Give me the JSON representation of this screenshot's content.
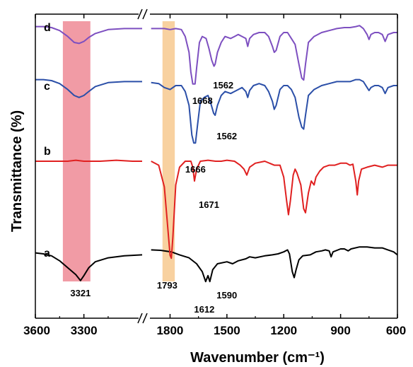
{
  "chart_data": {
    "type": "line",
    "xlabel": "Wavenumber (cm⁻¹)",
    "ylabel": "Transmittance (%)",
    "x_ticks": [
      "3600",
      "3300",
      "1800",
      "1500",
      "1200",
      "900",
      "600"
    ],
    "x_axis_break": true,
    "x_reversed": true,
    "highlight_bands": [
      {
        "from": 3430,
        "to": 3260,
        "color": "#ee8a95"
      },
      {
        "from": 1840,
        "to": 1775,
        "color": "#f7c98f"
      }
    ],
    "series": [
      {
        "name": "a",
        "color": "#000000",
        "points": [
          [
            3600,
            0.055
          ],
          [
            3550,
            0.05
          ],
          [
            3500,
            0.04
          ],
          [
            3450,
            0.015
          ],
          [
            3400,
            -0.02
          ],
          [
            3350,
            -0.055
          ],
          [
            3321,
            -0.085
          ],
          [
            3300,
            -0.06
          ],
          [
            3270,
            -0.02
          ],
          [
            3230,
            0.01
          ],
          [
            3150,
            0.03
          ],
          [
            3050,
            0.04
          ],
          [
            2940,
            0.045
          ],
          [
            1900,
            0.07
          ],
          [
            1850,
            0.068
          ],
          [
            1793,
            0.06
          ],
          [
            1750,
            0.045
          ],
          [
            1700,
            0.03
          ],
          [
            1660,
            0.0
          ],
          [
            1630,
            -0.04
          ],
          [
            1612,
            -0.09
          ],
          [
            1600,
            -0.06
          ],
          [
            1590,
            -0.09
          ],
          [
            1575,
            -0.03
          ],
          [
            1550,
            0.0
          ],
          [
            1500,
            0.01
          ],
          [
            1470,
            0.0
          ],
          [
            1440,
            0.015
          ],
          [
            1400,
            0.025
          ],
          [
            1380,
            0.035
          ],
          [
            1350,
            0.03
          ],
          [
            1300,
            0.04
          ],
          [
            1260,
            0.045
          ],
          [
            1230,
            0.05
          ],
          [
            1200,
            0.06
          ],
          [
            1180,
            0.07
          ],
          [
            1170,
            0.05
          ],
          [
            1155,
            -0.04
          ],
          [
            1145,
            -0.07
          ],
          [
            1135,
            -0.03
          ],
          [
            1120,
            0.02
          ],
          [
            1100,
            0.04
          ],
          [
            1060,
            0.045
          ],
          [
            1030,
            0.06
          ],
          [
            1000,
            0.065
          ],
          [
            980,
            0.07
          ],
          [
            960,
            0.065
          ],
          [
            950,
            0.035
          ],
          [
            940,
            0.06
          ],
          [
            900,
            0.075
          ],
          [
            880,
            0.075
          ],
          [
            860,
            0.065
          ],
          [
            845,
            0.075
          ],
          [
            800,
            0.085
          ],
          [
            760,
            0.085
          ],
          [
            720,
            0.08
          ],
          [
            680,
            0.08
          ],
          [
            650,
            0.07
          ],
          [
            620,
            0.06
          ],
          [
            600,
            0.045
          ]
        ]
      },
      {
        "name": "b",
        "color": "#e02020",
        "points": [
          [
            3600,
            0.0
          ],
          [
            3500,
            0.0
          ],
          [
            3400,
            0.0
          ],
          [
            3350,
            0.005
          ],
          [
            3300,
            0.0
          ],
          [
            3200,
            0.0
          ],
          [
            3100,
            0.005
          ],
          [
            3000,
            0.0
          ],
          [
            2940,
            0.0
          ],
          [
            1900,
            0.0
          ],
          [
            1860,
            -0.02
          ],
          [
            1830,
            -0.13
          ],
          [
            1810,
            -0.36
          ],
          [
            1800,
            -0.475
          ],
          [
            1793,
            -0.49
          ],
          [
            1785,
            -0.38
          ],
          [
            1770,
            -0.12
          ],
          [
            1750,
            -0.03
          ],
          [
            1720,
            0.0
          ],
          [
            1690,
            0.0
          ],
          [
            1680,
            -0.03
          ],
          [
            1671,
            -0.1
          ],
          [
            1660,
            -0.04
          ],
          [
            1640,
            0.0
          ],
          [
            1600,
            0.005
          ],
          [
            1560,
            0.0
          ],
          [
            1530,
            0.0
          ],
          [
            1500,
            0.005
          ],
          [
            1460,
            0.0
          ],
          [
            1430,
            -0.02
          ],
          [
            1410,
            -0.04
          ],
          [
            1395,
            -0.07
          ],
          [
            1380,
            -0.03
          ],
          [
            1350,
            -0.01
          ],
          [
            1300,
            0.0
          ],
          [
            1250,
            -0.02
          ],
          [
            1220,
            -0.02
          ],
          [
            1200,
            -0.08
          ],
          [
            1185,
            -0.2
          ],
          [
            1175,
            -0.27
          ],
          [
            1165,
            -0.2
          ],
          [
            1150,
            -0.07
          ],
          [
            1140,
            -0.04
          ],
          [
            1130,
            -0.06
          ],
          [
            1110,
            -0.12
          ],
          [
            1095,
            -0.24
          ],
          [
            1085,
            -0.26
          ],
          [
            1070,
            -0.16
          ],
          [
            1055,
            -0.1
          ],
          [
            1040,
            -0.12
          ],
          [
            1030,
            -0.08
          ],
          [
            1010,
            -0.05
          ],
          [
            990,
            -0.03
          ],
          [
            960,
            -0.02
          ],
          [
            930,
            -0.02
          ],
          [
            900,
            -0.01
          ],
          [
            870,
            -0.01
          ],
          [
            850,
            -0.02
          ],
          [
            835,
            -0.015
          ],
          [
            820,
            -0.1
          ],
          [
            812,
            -0.17
          ],
          [
            805,
            -0.1
          ],
          [
            790,
            -0.04
          ],
          [
            760,
            -0.03
          ],
          [
            720,
            -0.02
          ],
          [
            680,
            -0.03
          ],
          [
            650,
            -0.02
          ],
          [
            620,
            -0.02
          ],
          [
            600,
            -0.02
          ]
        ]
      },
      {
        "name": "c",
        "color": "#2b4fa8",
        "points": [
          [
            3600,
            0.03
          ],
          [
            3550,
            0.03
          ],
          [
            3500,
            0.025
          ],
          [
            3450,
            0.01
          ],
          [
            3400,
            -0.02
          ],
          [
            3360,
            -0.05
          ],
          [
            3330,
            -0.06
          ],
          [
            3300,
            -0.05
          ],
          [
            3270,
            -0.03
          ],
          [
            3230,
            -0.005
          ],
          [
            3150,
            0.015
          ],
          [
            3050,
            0.02
          ],
          [
            2940,
            0.02
          ],
          [
            1900,
            0.015
          ],
          [
            1860,
            0.01
          ],
          [
            1830,
            -0.01
          ],
          [
            1800,
            -0.02
          ],
          [
            1770,
            0.0
          ],
          [
            1740,
            0.0
          ],
          [
            1720,
            -0.03
          ],
          [
            1700,
            -0.1
          ],
          [
            1685,
            -0.25
          ],
          [
            1675,
            -0.29
          ],
          [
            1666,
            -0.29
          ],
          [
            1655,
            -0.2
          ],
          [
            1640,
            -0.08
          ],
          [
            1620,
            -0.06
          ],
          [
            1600,
            -0.05
          ],
          [
            1585,
            -0.09
          ],
          [
            1570,
            -0.14
          ],
          [
            1562,
            -0.15
          ],
          [
            1550,
            -0.1
          ],
          [
            1530,
            -0.05
          ],
          [
            1510,
            -0.03
          ],
          [
            1480,
            -0.04
          ],
          [
            1460,
            -0.03
          ],
          [
            1440,
            -0.02
          ],
          [
            1420,
            -0.01
          ],
          [
            1400,
            -0.03
          ],
          [
            1390,
            -0.06
          ],
          [
            1380,
            -0.025
          ],
          [
            1360,
            0.0
          ],
          [
            1330,
            0.01
          ],
          [
            1300,
            0.0
          ],
          [
            1280,
            -0.03
          ],
          [
            1260,
            -0.08
          ],
          [
            1250,
            -0.12
          ],
          [
            1240,
            -0.1
          ],
          [
            1220,
            -0.02
          ],
          [
            1200,
            0.0
          ],
          [
            1180,
            0.0
          ],
          [
            1160,
            -0.02
          ],
          [
            1140,
            -0.06
          ],
          [
            1120,
            -0.16
          ],
          [
            1105,
            -0.21
          ],
          [
            1095,
            -0.22
          ],
          [
            1085,
            -0.15
          ],
          [
            1070,
            -0.05
          ],
          [
            1040,
            -0.02
          ],
          [
            1000,
            0.0
          ],
          [
            960,
            0.01
          ],
          [
            920,
            0.02
          ],
          [
            880,
            0.02
          ],
          [
            850,
            0.02
          ],
          [
            820,
            0.03
          ],
          [
            800,
            0.03
          ],
          [
            780,
            0.02
          ],
          [
            760,
            -0.01
          ],
          [
            750,
            -0.025
          ],
          [
            740,
            -0.01
          ],
          [
            720,
            0.0
          ],
          [
            700,
            0.0
          ],
          [
            680,
            -0.01
          ],
          [
            665,
            -0.04
          ],
          [
            650,
            -0.01
          ],
          [
            620,
            0.0
          ],
          [
            600,
            0.0
          ]
        ]
      },
      {
        "name": "d",
        "color": "#7d4fc0",
        "points": [
          [
            3600,
            0.03
          ],
          [
            3550,
            0.03
          ],
          [
            3500,
            0.025
          ],
          [
            3450,
            0.01
          ],
          [
            3400,
            -0.02
          ],
          [
            3360,
            -0.05
          ],
          [
            3330,
            -0.055
          ],
          [
            3300,
            -0.045
          ],
          [
            3270,
            -0.025
          ],
          [
            3230,
            -0.005
          ],
          [
            3150,
            0.015
          ],
          [
            3050,
            0.02
          ],
          [
            2940,
            0.02
          ],
          [
            1900,
            0.02
          ],
          [
            1860,
            0.02
          ],
          [
            1830,
            0.02
          ],
          [
            1800,
            0.015
          ],
          [
            1770,
            0.02
          ],
          [
            1740,
            0.015
          ],
          [
            1720,
            -0.02
          ],
          [
            1700,
            -0.1
          ],
          [
            1690,
            -0.2
          ],
          [
            1680,
            -0.26
          ],
          [
            1668,
            -0.26
          ],
          [
            1660,
            -0.18
          ],
          [
            1645,
            -0.05
          ],
          [
            1630,
            -0.02
          ],
          [
            1610,
            -0.03
          ],
          [
            1595,
            -0.08
          ],
          [
            1580,
            -0.14
          ],
          [
            1568,
            -0.17
          ],
          [
            1562,
            -0.16
          ],
          [
            1550,
            -0.1
          ],
          [
            1530,
            -0.05
          ],
          [
            1510,
            -0.02
          ],
          [
            1480,
            -0.03
          ],
          [
            1460,
            -0.02
          ],
          [
            1440,
            -0.01
          ],
          [
            1420,
            -0.02
          ],
          [
            1400,
            -0.03
          ],
          [
            1390,
            -0.07
          ],
          [
            1380,
            -0.03
          ],
          [
            1360,
            -0.01
          ],
          [
            1330,
            0.0
          ],
          [
            1300,
            0.0
          ],
          [
            1280,
            -0.02
          ],
          [
            1260,
            -0.07
          ],
          [
            1250,
            -0.1
          ],
          [
            1240,
            -0.09
          ],
          [
            1220,
            -0.02
          ],
          [
            1200,
            0.0
          ],
          [
            1180,
            0.0
          ],
          [
            1160,
            -0.03
          ],
          [
            1140,
            -0.06
          ],
          [
            1120,
            -0.16
          ],
          [
            1105,
            -0.23
          ],
          [
            1095,
            -0.24
          ],
          [
            1085,
            -0.16
          ],
          [
            1070,
            -0.05
          ],
          [
            1040,
            -0.02
          ],
          [
            1000,
            0.0
          ],
          [
            960,
            0.01
          ],
          [
            920,
            0.02
          ],
          [
            880,
            0.025
          ],
          [
            850,
            0.025
          ],
          [
            820,
            0.03
          ],
          [
            800,
            0.035
          ],
          [
            780,
            0.02
          ],
          [
            760,
            -0.01
          ],
          [
            750,
            -0.035
          ],
          [
            740,
            -0.01
          ],
          [
            720,
            0.0
          ],
          [
            700,
            0.0
          ],
          [
            680,
            -0.01
          ],
          [
            665,
            -0.045
          ],
          [
            650,
            -0.01
          ],
          [
            620,
            0.0
          ],
          [
            600,
            0.0
          ]
        ]
      }
    ],
    "annotations": [
      {
        "series": "a",
        "x": 3321,
        "label": "3321"
      },
      {
        "series": "a",
        "x": 1793,
        "label": "1793"
      },
      {
        "series": "a",
        "x": 1612,
        "label": "1612"
      },
      {
        "series": "a",
        "x": 1590,
        "label": "1590"
      },
      {
        "series": "b",
        "x": 1671,
        "label": "1671"
      },
      {
        "series": "c",
        "x": 1666,
        "label": "1666"
      },
      {
        "series": "c",
        "x": 1562,
        "label": "1562"
      },
      {
        "series": "d",
        "x": 1668,
        "label": "1668"
      },
      {
        "series": "d",
        "x": 1562,
        "label": "1562"
      }
    ]
  }
}
